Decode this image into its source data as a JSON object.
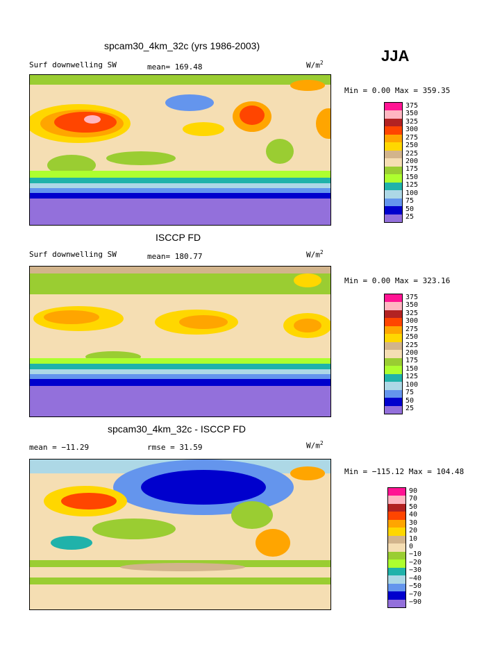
{
  "season": "JJA",
  "panels": [
    {
      "title": "spcam30_4km_32c (yrs 1986-2003)",
      "left_label": "Surf downwelling SW",
      "mid_label": "mean= 169.48",
      "units": "W/m",
      "units_sup": "2",
      "minmax": "Min =    0.00 Max = 359.35",
      "levels": [
        "375",
        "350",
        "325",
        "300",
        "275",
        "250",
        "225",
        "200",
        "175",
        "150",
        "125",
        "100",
        "75",
        "50",
        "25"
      ]
    },
    {
      "title": "ISCCP FD",
      "left_label": "Surf downwelling SW",
      "mid_label": "mean= 180.77",
      "units": "W/m",
      "units_sup": "2",
      "minmax": "Min =    0.00 Max = 323.16",
      "levels": [
        "375",
        "350",
        "325",
        "300",
        "275",
        "250",
        "225",
        "200",
        "175",
        "150",
        "125",
        "100",
        "75",
        "50",
        "25"
      ]
    },
    {
      "title": "spcam30_4km_32c - ISCCP FD",
      "left_label": "mean = −11.29",
      "mid_label": "rmse =  31.59",
      "units": "W/m",
      "units_sup": "2",
      "minmax": "Min = −115.12 Max = 104.48",
      "levels": [
        "90",
        "70",
        "50",
        "40",
        "30",
        "20",
        "10",
        "0",
        "−10",
        "−20",
        "−30",
        "−40",
        "−50",
        "−70",
        "−90"
      ]
    }
  ],
  "colors": [
    "#ff1493",
    "#ffb6c1",
    "#b22222",
    "#ff4500",
    "#ffa500",
    "#ffd700",
    "#d2b48c",
    "#f5deb3",
    "#9acd32",
    "#adff2f",
    "#20b2aa",
    "#add8e6",
    "#6495ed",
    "#0000cd",
    "#9370db"
  ],
  "chart_data": [
    {
      "type": "heatmap",
      "title": "spcam30_4km_32c (yrs 1986-2003)",
      "variable": "Surf downwelling SW",
      "units": "W/m2",
      "mean": 169.48,
      "min": 0.0,
      "max": 359.35,
      "levels": [
        25,
        50,
        75,
        100,
        125,
        150,
        175,
        200,
        225,
        250,
        275,
        300,
        325,
        350,
        375
      ]
    },
    {
      "type": "heatmap",
      "title": "ISCCP FD",
      "variable": "Surf downwelling SW",
      "units": "W/m2",
      "mean": 180.77,
      "min": 0.0,
      "max": 323.16,
      "levels": [
        25,
        50,
        75,
        100,
        125,
        150,
        175,
        200,
        225,
        250,
        275,
        300,
        325,
        350,
        375
      ]
    },
    {
      "type": "heatmap",
      "title": "spcam30_4km_32c - ISCCP FD",
      "units": "W/m2",
      "mean": -11.29,
      "rmse": 31.59,
      "min": -115.12,
      "max": 104.48,
      "levels": [
        -90,
        -70,
        -50,
        -40,
        -30,
        -20,
        -10,
        0,
        10,
        20,
        30,
        40,
        50,
        70,
        90
      ]
    }
  ]
}
